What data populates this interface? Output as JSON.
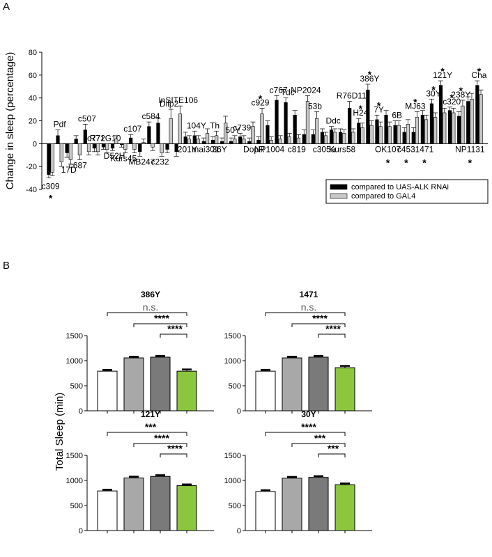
{
  "panel_labels": [
    "A",
    "B"
  ],
  "chart_data": [
    {
      "type": "bar",
      "panel": "A",
      "ylabel": "Change in sleep (percentage)",
      "ylim": [
        -40,
        80
      ],
      "yticks": [
        -40,
        -20,
        0,
        20,
        40,
        60,
        80
      ],
      "legend_position": "bottom-right",
      "series_colors": [
        "#000000",
        "#c8c8c8"
      ],
      "series": [
        {
          "name": "compared to UAS-ALK RNAi"
        },
        {
          "name": "compared to GAL4"
        }
      ],
      "categories": [
        {
          "label": "c309",
          "a": -27,
          "ae": 3,
          "g": -25,
          "ge": 3,
          "star": true
        },
        {
          "label": "Pdf",
          "a": 7,
          "ae": 5,
          "g": -16,
          "ge": 4
        },
        {
          "label": "17D",
          "a": -8,
          "ae": 4,
          "g": -14,
          "ge": 4
        },
        {
          "label": "c687",
          "a": 4,
          "ae": 3,
          "g": -10,
          "ge": 4
        },
        {
          "label": "c507",
          "a": 12,
          "ae": 5,
          "g": -7,
          "ge": 3
        },
        {
          "label": "c772",
          "a": -4,
          "ae": 3,
          "g": -7,
          "ge": 3
        },
        {
          "label": "R71G10",
          "a": -3,
          "ae": 2,
          "g": -5,
          "ge": 3
        },
        {
          "label": "D52H",
          "a": -4,
          "ae": 2,
          "g": 4,
          "ge": 3
        },
        {
          "label": "Kurs45",
          "a": -1,
          "ae": 2,
          "g": -5,
          "ge": 3
        },
        {
          "label": "c107",
          "a": 5,
          "ae": 3,
          "g": -5,
          "ge": 3
        },
        {
          "label": "MB247",
          "a": -7,
          "ae": 4,
          "g": 1,
          "ge": 3
        },
        {
          "label": "c584",
          "a": 15,
          "ae": 4,
          "g": -3,
          "ge": 3
        },
        {
          "label": "c232",
          "a": 18,
          "ae": 4,
          "g": -8,
          "ge": 3
        },
        {
          "label": "Dilp2",
          "a": -5,
          "ae": 3,
          "g": 22,
          "ge": 8
        },
        {
          "label": "InSITE106",
          "a": -7,
          "ae": 4,
          "g": 26,
          "ge": 7
        },
        {
          "label": "201Y",
          "a": 6,
          "ae": 4,
          "g": 4,
          "ge": 3
        },
        {
          "label": "104Y",
          "a": 7,
          "ae": 4,
          "g": 4,
          "ge": 3
        },
        {
          "label": "mai301",
          "a": 2,
          "ae": 3,
          "g": 9,
          "ge": 4
        },
        {
          "label": "Th",
          "a": 3,
          "ae": 3,
          "g": 7,
          "ge": 4
        },
        {
          "label": "36Y",
          "a": 2,
          "ae": 3,
          "g": 18,
          "ge": 6
        },
        {
          "label": "50Y",
          "a": 2,
          "ae": 3,
          "g": 4,
          "ge": 3
        },
        {
          "label": "c739",
          "a": 6,
          "ae": 3,
          "g": 4,
          "ge": 3
        },
        {
          "label": "DopR",
          "a": 2,
          "ae": 3,
          "g": 15,
          "ge": 4
        },
        {
          "label": "c929",
          "a": 3,
          "ae": 3,
          "g": 26,
          "ge": 5,
          "star": true
        },
        {
          "label": "NP1004",
          "a": 16,
          "ae": 4,
          "g": 3,
          "ge": 3
        },
        {
          "label": "c767",
          "a": 38,
          "ae": 4,
          "g": 4,
          "ge": 3
        },
        {
          "label": "Tdc",
          "a": 36,
          "ae": 4,
          "g": 6,
          "ge": 3
        },
        {
          "label": "c819",
          "a": 25,
          "ae": 4,
          "g": 5,
          "ge": 3
        },
        {
          "label": "NP2024",
          "a": 8,
          "ae": 4,
          "g": 37,
          "ge": 5
        },
        {
          "label": "53b",
          "a": 8,
          "ae": 4,
          "g": 22,
          "ge": 6
        },
        {
          "label": "c305a",
          "a": 10,
          "ae": 3,
          "g": 7,
          "ge": 3
        },
        {
          "label": "Ddc",
          "a": 12,
          "ae": 3,
          "g": 10,
          "ge": 3
        },
        {
          "label": "Kurs58",
          "a": 10,
          "ae": 3,
          "g": 9,
          "ge": 3
        },
        {
          "label": "R76D11",
          "a": 31,
          "ae": 6,
          "g": 10,
          "ge": 3
        },
        {
          "label": "H24",
          "a": 18,
          "ae": 4,
          "g": 14,
          "ge": 4,
          "star": true
        },
        {
          "label": "386Y",
          "a": 47,
          "ae": 5,
          "g": 16,
          "ge": 4,
          "star": true
        },
        {
          "label": "7Y",
          "a": 21,
          "ae": 4,
          "g": 15,
          "ge": 4,
          "star": true
        },
        {
          "label": "OK107",
          "a": 25,
          "ae": 4,
          "g": 15,
          "ge": 4,
          "star": true,
          "star_below": true
        },
        {
          "label": "6B",
          "a": 16,
          "ae": 4,
          "g": 16,
          "ge": 4
        },
        {
          "label": "c453",
          "a": 10,
          "ae": 4,
          "g": 17,
          "ge": 4,
          "star": true,
          "star_below": true
        },
        {
          "label": "MJ63",
          "a": 10,
          "ae": 4,
          "g": 23,
          "ge": 5,
          "star": true
        },
        {
          "label": "1471",
          "a": 25,
          "ae": 4,
          "g": 21,
          "ge": 4,
          "star": true,
          "star_below": true
        },
        {
          "label": "30Y",
          "a": 35,
          "ae": 4,
          "g": 23,
          "ge": 4,
          "star": true
        },
        {
          "label": "121Y",
          "a": 51,
          "ae": 4,
          "g": 27,
          "ge": 4,
          "star": true
        },
        {
          "label": "c320",
          "a": 29,
          "ae": 3,
          "g": 27,
          "ge": 4,
          "star": true
        },
        {
          "label": "238Y",
          "a": 24,
          "ae": 4,
          "g": 33,
          "ge": 5,
          "star": true
        },
        {
          "label": "NP1131",
          "a": 37,
          "ae": 4,
          "g": 39,
          "ge": 5,
          "star": true,
          "star_below": true
        },
        {
          "label": "Cha",
          "a": 51,
          "ae": 4,
          "g": 43,
          "ge": 4,
          "star": true
        }
      ]
    },
    {
      "type": "bar",
      "panel": "B",
      "title": "386Y",
      "ylabel": "Total Sleep (min)",
      "ylim": [
        0,
        1500
      ],
      "yticks": [
        0,
        500,
        1000,
        1500
      ],
      "bar_colors": [
        "#ffffff",
        "#a8a8a8",
        "#7a7a7a",
        "#8cc63f"
      ],
      "values": [
        790,
        1055,
        1070,
        790
      ],
      "errors": [
        25,
        25,
        25,
        35
      ],
      "significance": [
        {
          "from": 0,
          "to": 3,
          "label": "n.s."
        },
        {
          "from": 1,
          "to": 3,
          "label": "****"
        },
        {
          "from": 2,
          "to": 3,
          "label": "****"
        }
      ]
    },
    {
      "type": "bar",
      "panel": "B",
      "title": "1471",
      "ylabel": "",
      "ylim": [
        0,
        1500
      ],
      "yticks": [
        0,
        500,
        1000,
        1500
      ],
      "bar_colors": [
        "#ffffff",
        "#a8a8a8",
        "#7a7a7a",
        "#8cc63f"
      ],
      "values": [
        790,
        1055,
        1070,
        860
      ],
      "errors": [
        25,
        25,
        25,
        35
      ],
      "significance": [
        {
          "from": 0,
          "to": 3,
          "label": "n.s."
        },
        {
          "from": 1,
          "to": 3,
          "label": "****"
        },
        {
          "from": 2,
          "to": 3,
          "label": "****"
        }
      ]
    },
    {
      "type": "bar",
      "panel": "B",
      "title": "121Y",
      "ylabel": "",
      "ylim": [
        0,
        1500
      ],
      "yticks": [
        0,
        500,
        1000,
        1500
      ],
      "bar_colors": [
        "#ffffff",
        "#a8a8a8",
        "#7a7a7a",
        "#8cc63f"
      ],
      "values": [
        790,
        1050,
        1080,
        895
      ],
      "errors": [
        25,
        25,
        25,
        25
      ],
      "significance": [
        {
          "from": 0,
          "to": 3,
          "label": "***"
        },
        {
          "from": 1,
          "to": 3,
          "label": "****"
        },
        {
          "from": 2,
          "to": 3,
          "label": "****"
        }
      ]
    },
    {
      "type": "bar",
      "panel": "B",
      "title": "30Y",
      "ylabel": "",
      "ylim": [
        0,
        1500
      ],
      "yticks": [
        0,
        500,
        1000,
        1500
      ],
      "bar_colors": [
        "#ffffff",
        "#a8a8a8",
        "#7a7a7a",
        "#8cc63f"
      ],
      "values": [
        780,
        1045,
        1060,
        915
      ],
      "errors": [
        25,
        25,
        25,
        25
      ],
      "significance": [
        {
          "from": 0,
          "to": 3,
          "label": "****"
        },
        {
          "from": 1,
          "to": 3,
          "label": "***"
        },
        {
          "from": 2,
          "to": 3,
          "label": "***"
        }
      ]
    }
  ]
}
